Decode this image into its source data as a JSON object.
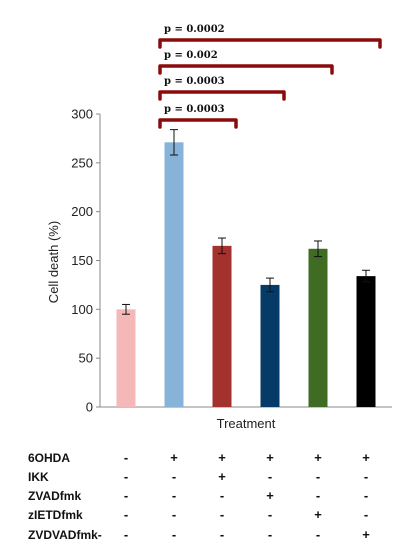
{
  "chart_data": {
    "type": "bar",
    "ylabel": "Cell death (%)",
    "xlabel": "Treatment",
    "ylim": [
      0,
      300
    ],
    "yticks": [
      0,
      50,
      100,
      150,
      200,
      250,
      300
    ],
    "grid": false,
    "values": [
      100,
      271,
      165,
      125,
      162,
      134
    ],
    "errors": [
      5,
      13,
      8,
      7,
      8,
      6
    ],
    "colors": [
      "#f4b8b8",
      "#87b3d9",
      "#a3312e",
      "#063b68",
      "#3f6b23",
      "#000000"
    ],
    "significance": [
      {
        "from": 1,
        "to": 2,
        "label": "p = 0.0003"
      },
      {
        "from": 1,
        "to": 3,
        "label": "p = 0.0003"
      },
      {
        "from": 1,
        "to": 4,
        "label": "p = 0.002"
      },
      {
        "from": 1,
        "to": 5,
        "label": "p = 0.0002"
      }
    ],
    "bracket_color": "#8b0a0a"
  },
  "treatment_table": {
    "rows": [
      {
        "label": "6OHDA",
        "marks": [
          "-",
          "+",
          "+",
          "+",
          "+",
          "+"
        ]
      },
      {
        "label": "IKK",
        "marks": [
          "-",
          "-",
          "+",
          "-",
          "-",
          "-"
        ]
      },
      {
        "label": "ZVADfmk",
        "marks": [
          "-",
          "-",
          "-",
          "+",
          "-",
          "-"
        ]
      },
      {
        "label": "zIETDfmk",
        "marks": [
          "-",
          "-",
          "-",
          "-",
          "+",
          "-"
        ]
      },
      {
        "label": "ZVDVADfmk-",
        "marks": [
          "-",
          "-",
          "-",
          "-",
          "-",
          "+"
        ]
      }
    ]
  }
}
